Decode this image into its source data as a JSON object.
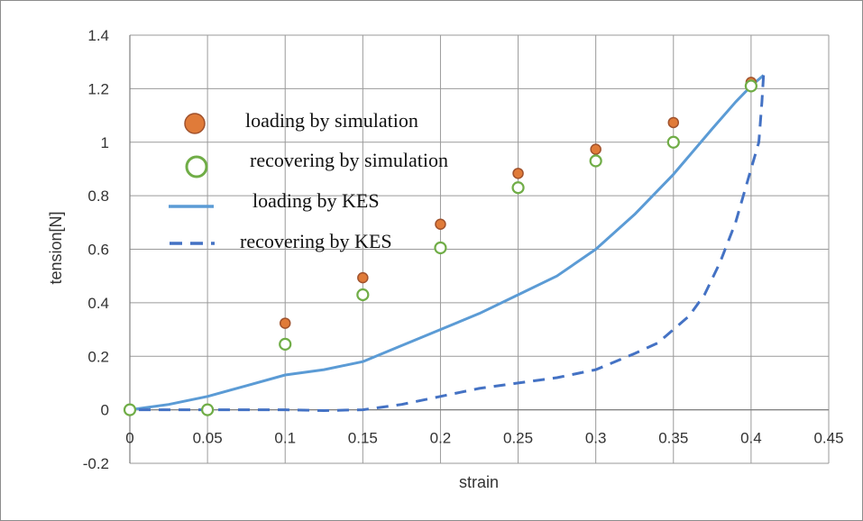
{
  "chart_data": {
    "type": "scatter",
    "title": "",
    "xlabel": "strain",
    "ylabel": "tension[N]",
    "xlim": [
      0,
      0.45
    ],
    "ylim": [
      -0.2,
      1.4
    ],
    "x_ticks": [
      "0",
      "0.05",
      "0.1",
      "0.15",
      "0.2",
      "0.25",
      "0.3",
      "0.35",
      "0.4",
      "0.45"
    ],
    "y_ticks": [
      "-0.2",
      "0",
      "0.2",
      "0.4",
      "0.6",
      "0.8",
      "1",
      "1.2",
      "1.4"
    ],
    "grid": true,
    "legend_position": "upper-left",
    "series": [
      {
        "name": "loading by simulation",
        "style": "filled-circle",
        "color": "#E07B39",
        "edge": "#A0522D",
        "x": [
          0.1,
          0.15,
          0.2,
          0.25,
          0.3,
          0.35,
          0.4
        ],
        "y": [
          0.31,
          0.48,
          0.68,
          0.87,
          0.96,
          1.06,
          1.21
        ]
      },
      {
        "name": "recovering by simulation",
        "style": "open-circle",
        "color": "#70AD47",
        "x": [
          0,
          0.05,
          0.1,
          0.15,
          0.2,
          0.25,
          0.3,
          0.35,
          0.4
        ],
        "y": [
          0,
          0,
          0.245,
          0.43,
          0.605,
          0.83,
          0.93,
          1.0,
          1.21
        ]
      },
      {
        "name": "loading by KES",
        "style": "solid-line",
        "color": "#5B9BD5",
        "x": [
          0,
          0.025,
          0.05,
          0.075,
          0.1,
          0.125,
          0.15,
          0.175,
          0.2,
          0.225,
          0.25,
          0.275,
          0.3,
          0.325,
          0.35,
          0.375,
          0.39,
          0.4,
          0.408
        ],
        "y": [
          0,
          0.02,
          0.05,
          0.09,
          0.13,
          0.15,
          0.18,
          0.24,
          0.3,
          0.36,
          0.43,
          0.5,
          0.6,
          0.73,
          0.88,
          1.05,
          1.15,
          1.21,
          1.25
        ]
      },
      {
        "name": "recovering by KES",
        "style": "dashed-line",
        "color": "#4472C4",
        "x": [
          0.408,
          0.407,
          0.405,
          0.4,
          0.39,
          0.38,
          0.37,
          0.36,
          0.35,
          0.34,
          0.325,
          0.3,
          0.275,
          0.25,
          0.225,
          0.2,
          0.175,
          0.15,
          0.125,
          0.1,
          0.05,
          0
        ],
        "y": [
          1.25,
          1.15,
          1.0,
          0.9,
          0.7,
          0.55,
          0.43,
          0.35,
          0.3,
          0.25,
          0.21,
          0.15,
          0.12,
          0.1,
          0.08,
          0.05,
          0.02,
          0,
          -0.003,
          0,
          0,
          0
        ]
      }
    ]
  }
}
